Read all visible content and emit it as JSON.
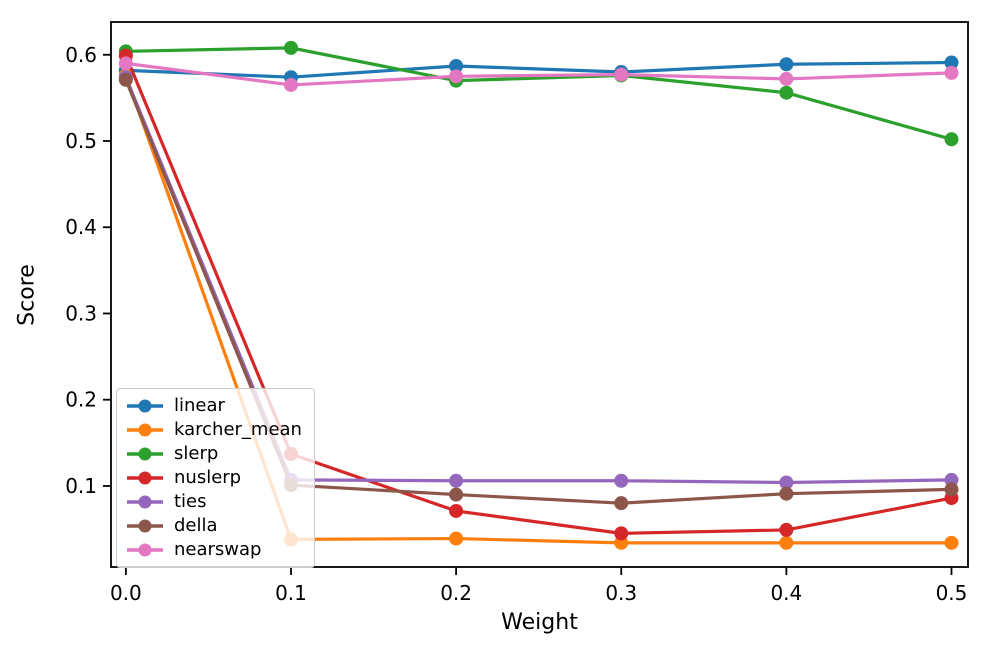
{
  "figure": {
    "background": "#ffffff",
    "axis_color": "#000000"
  },
  "chart_data": {
    "type": "line",
    "title": "",
    "xlabel": "Weight",
    "ylabel": "Score",
    "x": [
      0.0,
      0.1,
      0.2,
      0.3,
      0.4,
      0.5
    ],
    "series": [
      {
        "name": "linear",
        "color": "#1f77b4",
        "values": [
          0.582,
          0.574,
          0.587,
          0.58,
          0.589,
          0.591
        ]
      },
      {
        "name": "karcher_mean",
        "color": "#ff7f0e",
        "values": [
          0.576,
          0.038,
          0.039,
          0.034,
          0.034,
          0.034
        ]
      },
      {
        "name": "slerp",
        "color": "#2ca02c",
        "values": [
          0.604,
          0.608,
          0.57,
          0.576,
          0.556,
          0.502
        ]
      },
      {
        "name": "nuslerp",
        "color": "#d62728",
        "values": [
          0.599,
          0.137,
          0.071,
          0.045,
          0.049,
          0.086
        ]
      },
      {
        "name": "ties",
        "color": "#9467bd",
        "values": [
          0.574,
          0.107,
          0.106,
          0.106,
          0.104,
          0.107
        ]
      },
      {
        "name": "della",
        "color": "#8c564b",
        "values": [
          0.571,
          0.101,
          0.09,
          0.08,
          0.091,
          0.096
        ]
      },
      {
        "name": "nearswap",
        "color": "#e377c2",
        "values": [
          0.59,
          0.565,
          0.575,
          0.577,
          0.572,
          0.579
        ]
      }
    ],
    "xlim": [
      -0.009,
      0.51
    ],
    "ylim": [
      0.006,
      0.638
    ],
    "xticks": {
      "values": [
        0.0,
        0.1,
        0.2,
        0.3,
        0.4,
        0.5
      ],
      "labels": [
        "0.0",
        "0.1",
        "0.2",
        "0.3",
        "0.4",
        "0.5"
      ]
    },
    "yticks": {
      "values": [
        0.1,
        0.2,
        0.3,
        0.4,
        0.5,
        0.6
      ],
      "labels": [
        "0.1",
        "0.2",
        "0.3",
        "0.4",
        "0.5",
        "0.6"
      ]
    },
    "grid": false,
    "legend": {
      "position": "lower left"
    },
    "marker_size": 7,
    "line_width": 3.2
  }
}
